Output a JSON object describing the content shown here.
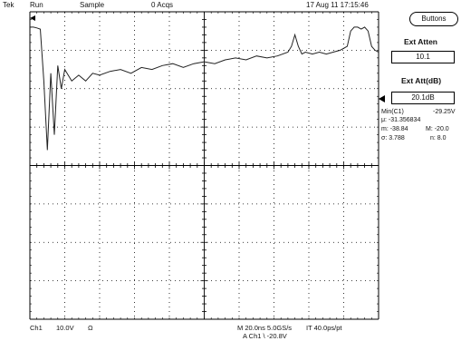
{
  "status_bar": {
    "brand": "Tek",
    "run_state": "Run",
    "acq_mode": "Sample",
    "acq_count": "0 Acqs",
    "timestamp": "17 Aug 11 17:15:46"
  },
  "side_panel": {
    "buttons_label": "Buttons",
    "ext_atten_label": "Ext Atten",
    "ext_atten_value": "10.1",
    "ext_att_db_label": "Ext Att(dB)",
    "ext_att_db_value": "20.1dB",
    "measurement": {
      "name": "Min(C1)",
      "value": "-29.25V",
      "mean": "μ: -31.356834",
      "min": "m: -38.84",
      "max": "M: -20.0",
      "std": "σ: 3.788",
      "count": "n: 8.0"
    }
  },
  "bottom_bar": {
    "channel": "Ch1",
    "scale": "10.0V",
    "coupling": "Ω",
    "timebase": "M 20.0ns 5.0GS/s",
    "record": "IT 40.0ps/pt",
    "trigger": "A  Ch1  \\  -20.8V"
  },
  "colors": {
    "trace": "#222222",
    "grid": "#000000"
  },
  "chart_data": {
    "type": "line",
    "title": "",
    "xlabel": "",
    "ylabel": "",
    "xlim": [
      0,
      200
    ],
    "ylim": [
      -40,
      40
    ],
    "grid": true,
    "series": [
      {
        "x": [
          0,
          2,
          4,
          6,
          8,
          10,
          12,
          14,
          16,
          18,
          20,
          24,
          28,
          32,
          36,
          40,
          46,
          52,
          58,
          64,
          70,
          76,
          82,
          88,
          94,
          100,
          106,
          112,
          118,
          124,
          130,
          136,
          142,
          148,
          150,
          152,
          154,
          156,
          158,
          162,
          166,
          170,
          174,
          178,
          182,
          184,
          186,
          188,
          190,
          192,
          194,
          196,
          198,
          200
        ],
        "values": [
          36,
          36,
          35.8,
          35.5,
          22,
          4,
          24,
          8,
          26,
          20,
          25,
          22,
          23.5,
          22,
          24,
          23.5,
          24.5,
          25,
          24,
          25.5,
          25,
          26,
          26.5,
          25.5,
          26.5,
          27,
          26.5,
          27.5,
          28,
          27.5,
          28.5,
          28,
          28.5,
          29.5,
          31,
          34,
          31,
          29,
          29.5,
          29,
          29.5,
          29,
          29.5,
          30,
          31,
          35,
          36,
          36,
          35.5,
          36,
          35,
          31,
          30,
          29.5
        ]
      }
    ]
  }
}
